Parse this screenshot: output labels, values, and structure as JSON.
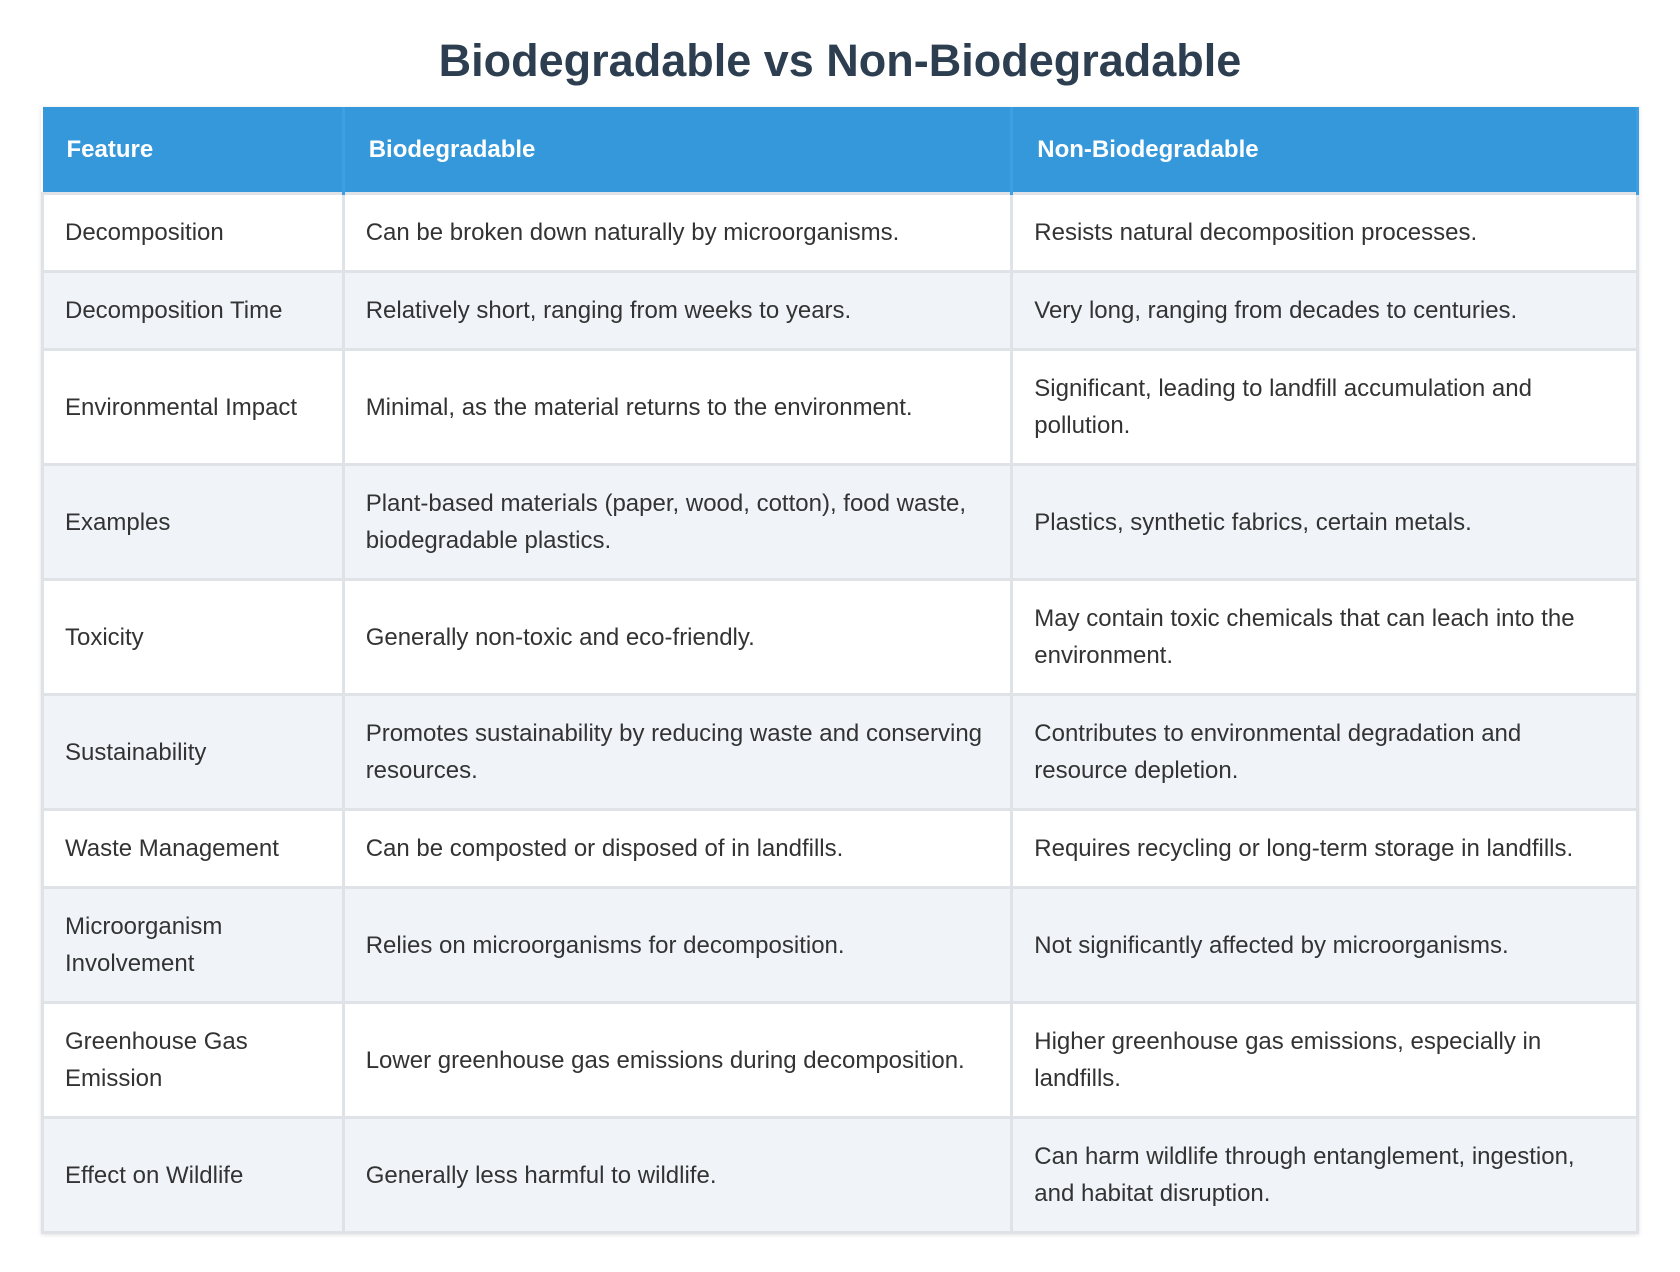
{
  "title": "Biodegradable vs Non-Biodegradable",
  "table": {
    "columns": [
      "Feature",
      "Biodegradable",
      "Non-Biodegradable"
    ],
    "rows": [
      [
        "Decomposition",
        "Can be broken down naturally by microorganisms.",
        "Resists natural decomposition processes."
      ],
      [
        "Decomposition Time",
        "Relatively short, ranging from weeks to years.",
        "Very long, ranging from decades to centuries."
      ],
      [
        "Environmental Impact",
        "Minimal, as the material returns to the environment.",
        "Significant, leading to landfill accumulation and pollution."
      ],
      [
        "Examples",
        "Plant-based materials (paper, wood, cotton), food waste, biodegradable plastics.",
        "Plastics, synthetic fabrics, certain metals."
      ],
      [
        "Toxicity",
        "Generally non-toxic and eco-friendly.",
        "May contain toxic chemicals that can leach into the environment."
      ],
      [
        "Sustainability",
        "Promotes sustainability by reducing waste and conserving resources.",
        "Contributes to environmental degradation and resource depletion."
      ],
      [
        "Waste Management",
        "Can be composted or disposed of in landfills.",
        "Requires recycling or long-term storage in landfills."
      ],
      [
        "Microorganism Involvement",
        "Relies on microorganisms for decomposition.",
        "Not significantly affected by microorganisms."
      ],
      [
        "Greenhouse Gas Emission",
        "Lower greenhouse gas emissions during decomposition.",
        "Higher greenhouse gas emissions, especially in landfills."
      ],
      [
        "Effect on Wildlife",
        "Generally less harmful to wildlife.",
        "Can harm wildlife through entanglement, ingestion, and habitat disruption."
      ]
    ]
  }
}
